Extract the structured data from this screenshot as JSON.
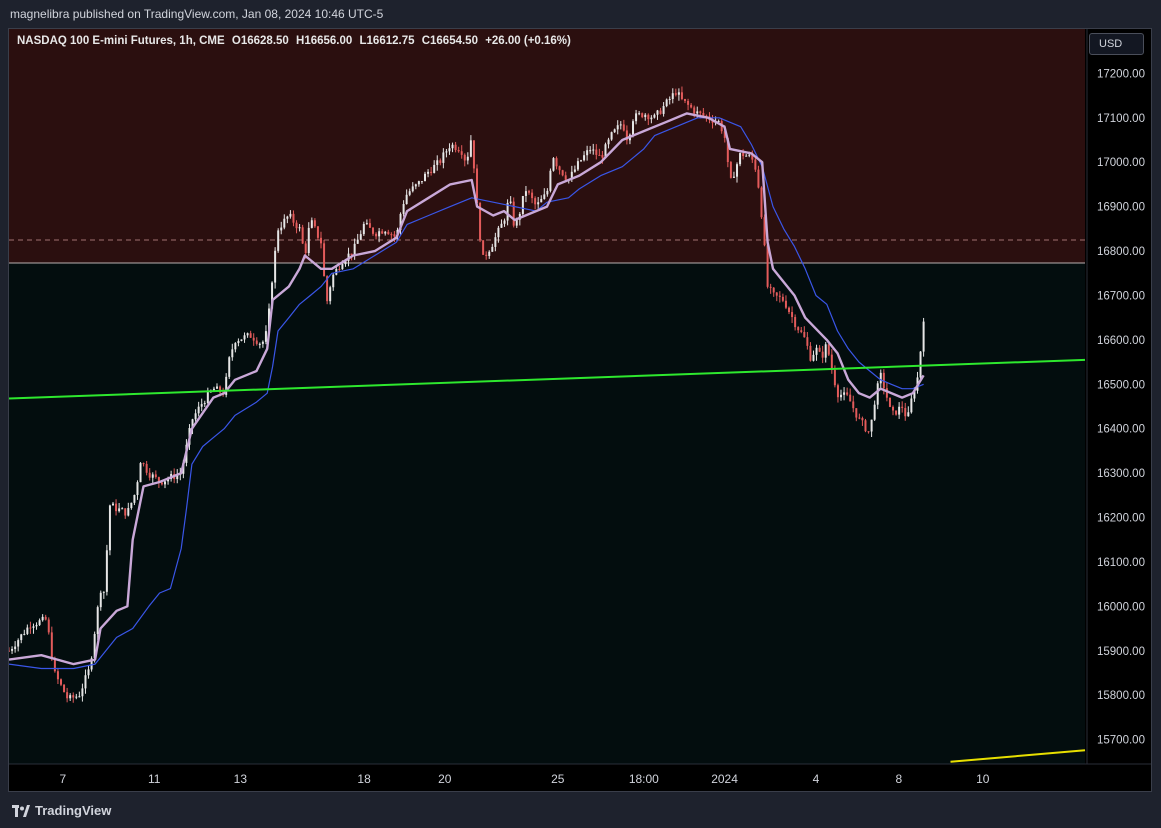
{
  "header": {
    "published": "magnelibra published on TradingView.com, Jan 08, 2024 10:46 UTC-5"
  },
  "legend": {
    "symbol": "NASDAQ 100 E-mini Futures, 1h, CME",
    "open": "O16628.50",
    "high": "H16656.00",
    "low": "L16612.75",
    "close": "C16654.50",
    "change": "+26.00 (+0.16%)"
  },
  "currency_button": "USD",
  "footer": {
    "brand": "TradingView"
  },
  "colors": {
    "chart_bg": "#000000",
    "upper_zone": "#2b0f0f",
    "lower_zone": "#030d0e",
    "up_candle": "#e6e6e6",
    "down_candle": "#e35b5b",
    "ma_fast": "#c9a8d8",
    "ma_slow": "#3a56e8",
    "trendline": "#2ee82e",
    "lower_trendline": "#e8e000",
    "axis_text": "#d1d4dc"
  },
  "chart_data": {
    "type": "candlestick",
    "title": "",
    "ylim": [
      15645,
      17300
    ],
    "y_ticks": [
      17200,
      17100,
      17000,
      16900,
      16800,
      16700,
      16600,
      16500,
      16400,
      16300,
      16200,
      16100,
      16000,
      15900,
      15800,
      15700
    ],
    "y_tick_labels": [
      "17200.00",
      "17100.00",
      "17000.00",
      "16900.00",
      "16800.00",
      "16700.00",
      "16600.00",
      "16500.00",
      "16400.00",
      "16300.00",
      "16200.00",
      "16100.00",
      "16000.00",
      "15900.00",
      "15800.00",
      "15700.00"
    ],
    "x_ticks": [
      {
        "label": "7",
        "t": 0.05
      },
      {
        "label": "11",
        "t": 0.135
      },
      {
        "label": "13",
        "t": 0.215
      },
      {
        "label": "18",
        "t": 0.33
      },
      {
        "label": "20",
        "t": 0.405
      },
      {
        "label": "25",
        "t": 0.51
      },
      {
        "label": "18:00",
        "t": 0.59
      },
      {
        "label": "2024",
        "t": 0.665
      },
      {
        "label": "4",
        "t": 0.75
      },
      {
        "label": "8",
        "t": 0.827
      },
      {
        "label": "10",
        "t": 0.905
      }
    ],
    "zone_boundary": 16773,
    "dashed_level": 16825,
    "trendline": {
      "start": 16468,
      "end": 16555
    },
    "lower_trendline": {
      "start_t": 0.875,
      "start": 15650,
      "end": 15676
    },
    "price_path": [
      [
        0.0,
        15900
      ],
      [
        0.02,
        15960
      ],
      [
        0.035,
        15970
      ],
      [
        0.042,
        15850
      ],
      [
        0.055,
        15790
      ],
      [
        0.065,
        15800
      ],
      [
        0.075,
        15860
      ],
      [
        0.085,
        16040
      ],
      [
        0.09,
        16030
      ],
      [
        0.092,
        16230
      ],
      [
        0.1,
        16220
      ],
      [
        0.11,
        16210
      ],
      [
        0.118,
        16260
      ],
      [
        0.122,
        16330
      ],
      [
        0.13,
        16300
      ],
      [
        0.14,
        16280
      ],
      [
        0.15,
        16290
      ],
      [
        0.16,
        16300
      ],
      [
        0.17,
        16420
      ],
      [
        0.18,
        16460
      ],
      [
        0.19,
        16490
      ],
      [
        0.2,
        16480
      ],
      [
        0.205,
        16560
      ],
      [
        0.21,
        16600
      ],
      [
        0.225,
        16610
      ],
      [
        0.235,
        16590
      ],
      [
        0.24,
        16620
      ],
      [
        0.245,
        16750
      ],
      [
        0.25,
        16850
      ],
      [
        0.26,
        16880
      ],
      [
        0.27,
        16850
      ],
      [
        0.275,
        16790
      ],
      [
        0.28,
        16870
      ],
      [
        0.29,
        16820
      ],
      [
        0.295,
        16680
      ],
      [
        0.3,
        16740
      ],
      [
        0.31,
        16780
      ],
      [
        0.32,
        16800
      ],
      [
        0.33,
        16860
      ],
      [
        0.34,
        16840
      ],
      [
        0.35,
        16850
      ],
      [
        0.36,
        16830
      ],
      [
        0.365,
        16900
      ],
      [
        0.37,
        16930
      ],
      [
        0.38,
        16950
      ],
      [
        0.39,
        16980
      ],
      [
        0.4,
        17000
      ],
      [
        0.41,
        17040
      ],
      [
        0.42,
        17030
      ],
      [
        0.425,
        17000
      ],
      [
        0.43,
        17060
      ],
      [
        0.435,
        16900
      ],
      [
        0.44,
        16780
      ],
      [
        0.45,
        16820
      ],
      [
        0.46,
        16870
      ],
      [
        0.465,
        16920
      ],
      [
        0.47,
        16850
      ],
      [
        0.475,
        16890
      ],
      [
        0.48,
        16940
      ],
      [
        0.49,
        16900
      ],
      [
        0.5,
        16930
      ],
      [
        0.505,
        17020
      ],
      [
        0.51,
        16990
      ],
      [
        0.52,
        16960
      ],
      [
        0.53,
        17000
      ],
      [
        0.54,
        17030
      ],
      [
        0.55,
        17010
      ],
      [
        0.56,
        17060
      ],
      [
        0.57,
        17090
      ],
      [
        0.575,
        17050
      ],
      [
        0.58,
        17100
      ],
      [
        0.59,
        17110
      ],
      [
        0.6,
        17100
      ],
      [
        0.61,
        17130
      ],
      [
        0.62,
        17160
      ],
      [
        0.625,
        17140
      ],
      [
        0.63,
        17130
      ],
      [
        0.64,
        17110
      ],
      [
        0.65,
        17100
      ],
      [
        0.66,
        17090
      ],
      [
        0.665,
        17060
      ],
      [
        0.67,
        16950
      ],
      [
        0.68,
        17020
      ],
      [
        0.69,
        17010
      ],
      [
        0.695,
        16980
      ],
      [
        0.7,
        16870
      ],
      [
        0.705,
        16720
      ],
      [
        0.71,
        16700
      ],
      [
        0.72,
        16690
      ],
      [
        0.73,
        16640
      ],
      [
        0.74,
        16600
      ],
      [
        0.745,
        16560
      ],
      [
        0.75,
        16580
      ],
      [
        0.755,
        16560
      ],
      [
        0.76,
        16590
      ],
      [
        0.765,
        16530
      ],
      [
        0.77,
        16480
      ],
      [
        0.78,
        16470
      ],
      [
        0.79,
        16420
      ],
      [
        0.8,
        16390
      ],
      [
        0.805,
        16470
      ],
      [
        0.81,
        16520
      ],
      [
        0.815,
        16480
      ],
      [
        0.82,
        16430
      ],
      [
        0.83,
        16450
      ],
      [
        0.835,
        16420
      ],
      [
        0.84,
        16480
      ],
      [
        0.845,
        16520
      ],
      [
        0.85,
        16650
      ]
    ],
    "ma_fast_path": [
      [
        0.0,
        15880
      ],
      [
        0.03,
        15890
      ],
      [
        0.06,
        15870
      ],
      [
        0.08,
        15880
      ],
      [
        0.085,
        15950
      ],
      [
        0.1,
        15990
      ],
      [
        0.11,
        16000
      ],
      [
        0.115,
        16150
      ],
      [
        0.125,
        16270
      ],
      [
        0.14,
        16280
      ],
      [
        0.16,
        16300
      ],
      [
        0.17,
        16400
      ],
      [
        0.19,
        16470
      ],
      [
        0.2,
        16480
      ],
      [
        0.21,
        16510
      ],
      [
        0.23,
        16530
      ],
      [
        0.24,
        16580
      ],
      [
        0.245,
        16690
      ],
      [
        0.26,
        16720
      ],
      [
        0.27,
        16760
      ],
      [
        0.275,
        16790
      ],
      [
        0.29,
        16760
      ],
      [
        0.3,
        16760
      ],
      [
        0.32,
        16790
      ],
      [
        0.34,
        16800
      ],
      [
        0.36,
        16830
      ],
      [
        0.37,
        16890
      ],
      [
        0.39,
        16920
      ],
      [
        0.41,
        16950
      ],
      [
        0.43,
        16960
      ],
      [
        0.435,
        16900
      ],
      [
        0.45,
        16880
      ],
      [
        0.46,
        16890
      ],
      [
        0.47,
        16870
      ],
      [
        0.48,
        16880
      ],
      [
        0.5,
        16900
      ],
      [
        0.51,
        16950
      ],
      [
        0.53,
        16970
      ],
      [
        0.55,
        17000
      ],
      [
        0.57,
        17050
      ],
      [
        0.59,
        17070
      ],
      [
        0.61,
        17090
      ],
      [
        0.63,
        17110
      ],
      [
        0.65,
        17100
      ],
      [
        0.665,
        17080
      ],
      [
        0.67,
        17030
      ],
      [
        0.69,
        17020
      ],
      [
        0.7,
        17000
      ],
      [
        0.705,
        16820
      ],
      [
        0.71,
        16760
      ],
      [
        0.73,
        16700
      ],
      [
        0.74,
        16650
      ],
      [
        0.76,
        16600
      ],
      [
        0.77,
        16570
      ],
      [
        0.78,
        16510
      ],
      [
        0.79,
        16480
      ],
      [
        0.8,
        16470
      ],
      [
        0.81,
        16490
      ],
      [
        0.83,
        16470
      ],
      [
        0.84,
        16480
      ],
      [
        0.85,
        16520
      ]
    ],
    "ma_slow_path": [
      [
        0.0,
        15870
      ],
      [
        0.03,
        15860
      ],
      [
        0.06,
        15860
      ],
      [
        0.08,
        15870
      ],
      [
        0.1,
        15930
      ],
      [
        0.115,
        15950
      ],
      [
        0.13,
        16000
      ],
      [
        0.14,
        16030
      ],
      [
        0.15,
        16040
      ],
      [
        0.16,
        16130
      ],
      [
        0.165,
        16220
      ],
      [
        0.17,
        16320
      ],
      [
        0.18,
        16360
      ],
      [
        0.19,
        16380
      ],
      [
        0.2,
        16400
      ],
      [
        0.21,
        16430
      ],
      [
        0.23,
        16460
      ],
      [
        0.24,
        16480
      ],
      [
        0.245,
        16540
      ],
      [
        0.25,
        16620
      ],
      [
        0.26,
        16650
      ],
      [
        0.27,
        16680
      ],
      [
        0.28,
        16700
      ],
      [
        0.29,
        16720
      ],
      [
        0.3,
        16750
      ],
      [
        0.32,
        16760
      ],
      [
        0.34,
        16790
      ],
      [
        0.36,
        16820
      ],
      [
        0.37,
        16860
      ],
      [
        0.39,
        16880
      ],
      [
        0.41,
        16900
      ],
      [
        0.43,
        16920
      ],
      [
        0.45,
        16910
      ],
      [
        0.47,
        16900
      ],
      [
        0.49,
        16890
      ],
      [
        0.5,
        16910
      ],
      [
        0.52,
        16920
      ],
      [
        0.53,
        16940
      ],
      [
        0.55,
        16970
      ],
      [
        0.57,
        16990
      ],
      [
        0.59,
        17030
      ],
      [
        0.6,
        17060
      ],
      [
        0.62,
        17080
      ],
      [
        0.64,
        17100
      ],
      [
        0.66,
        17100
      ],
      [
        0.68,
        17080
      ],
      [
        0.69,
        17040
      ],
      [
        0.7,
        16990
      ],
      [
        0.71,
        16900
      ],
      [
        0.72,
        16850
      ],
      [
        0.73,
        16810
      ],
      [
        0.74,
        16760
      ],
      [
        0.75,
        16700
      ],
      [
        0.76,
        16680
      ],
      [
        0.77,
        16620
      ],
      [
        0.78,
        16580
      ],
      [
        0.79,
        16550
      ],
      [
        0.8,
        16530
      ],
      [
        0.81,
        16510
      ],
      [
        0.82,
        16500
      ],
      [
        0.83,
        16490
      ],
      [
        0.84,
        16490
      ],
      [
        0.85,
        16500
      ]
    ]
  }
}
